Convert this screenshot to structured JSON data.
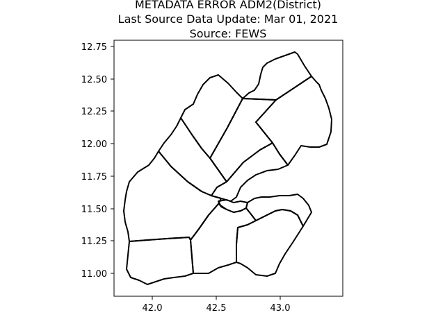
{
  "title": {
    "line1": "METADATA ERROR ADM2(District)",
    "line2": "Last Source Data Update: Mar 01, 2021",
    "line3": "Source: FEWS"
  },
  "axes": {
    "x_ticks": [
      "42.0",
      "42.5",
      "43.0"
    ],
    "y_ticks": [
      "12.75",
      "12.50",
      "12.25",
      "12.00",
      "11.75",
      "11.50",
      "11.25",
      "11.00"
    ]
  },
  "map": {
    "type": "choropleth-outline",
    "region_count": 11,
    "stroke_color": "#000000",
    "fill_color": "none"
  }
}
